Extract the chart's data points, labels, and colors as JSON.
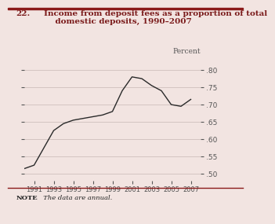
{
  "years": [
    1990,
    1991,
    1992,
    1993,
    1994,
    1995,
    1996,
    1997,
    1998,
    1999,
    2000,
    2001,
    2002,
    2003,
    2004,
    2005,
    2006,
    2007
  ],
  "values": [
    0.515,
    0.525,
    0.575,
    0.625,
    0.645,
    0.655,
    0.66,
    0.665,
    0.67,
    0.68,
    0.74,
    0.78,
    0.775,
    0.755,
    0.74,
    0.7,
    0.695,
    0.715
  ],
  "title_num": "22.",
  "title_text": "Income from deposit fees as a proportion of total\n    domestic deposits, 1990–2007",
  "ylabel": "Percent",
  "note_bold": "NOTE",
  "note_rest": "  The data are annual.",
  "ylim": [
    0.48,
    0.835
  ],
  "yticks": [
    0.5,
    0.55,
    0.6,
    0.65,
    0.7,
    0.75,
    0.8
  ],
  "xticks": [
    1991,
    1993,
    1995,
    1997,
    1999,
    2001,
    2003,
    2005,
    2007
  ],
  "xlim": [
    1990,
    2008
  ],
  "line_color": "#2a2a2a",
  "bg_color": "#f2e4e1",
  "title_color": "#7a1a1a",
  "border_color": "#8b1a1a",
  "grid_color": "#c8b8b5",
  "tick_color": "#555555",
  "note_color": "#222222"
}
